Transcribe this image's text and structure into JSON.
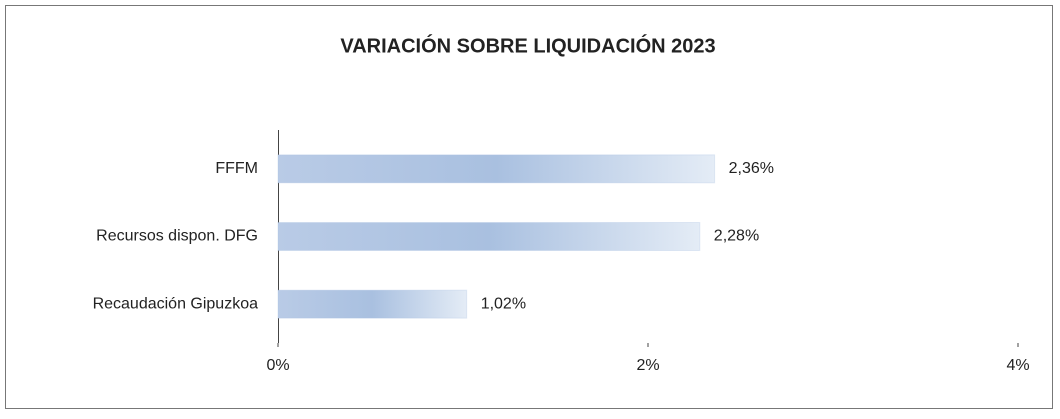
{
  "chart_data": {
    "type": "hbar",
    "title": "VARIACIÓN SOBRE LIQUIDACIÓN 2023",
    "categories": [
      "FFFM",
      "Recursos dispon. DFG",
      "Recaudación Gipuzkoa"
    ],
    "values": [
      2.36,
      2.28,
      1.02
    ],
    "value_labels": [
      "2,36%",
      "2,28%",
      "1,02%"
    ],
    "color": "#a9c0e0",
    "xlim": [
      0,
      4
    ],
    "xticks": [
      {
        "value": 0,
        "label": "0%"
      },
      {
        "value": 2,
        "label": "2%"
      },
      {
        "value": 4,
        "label": "4%"
      }
    ]
  }
}
